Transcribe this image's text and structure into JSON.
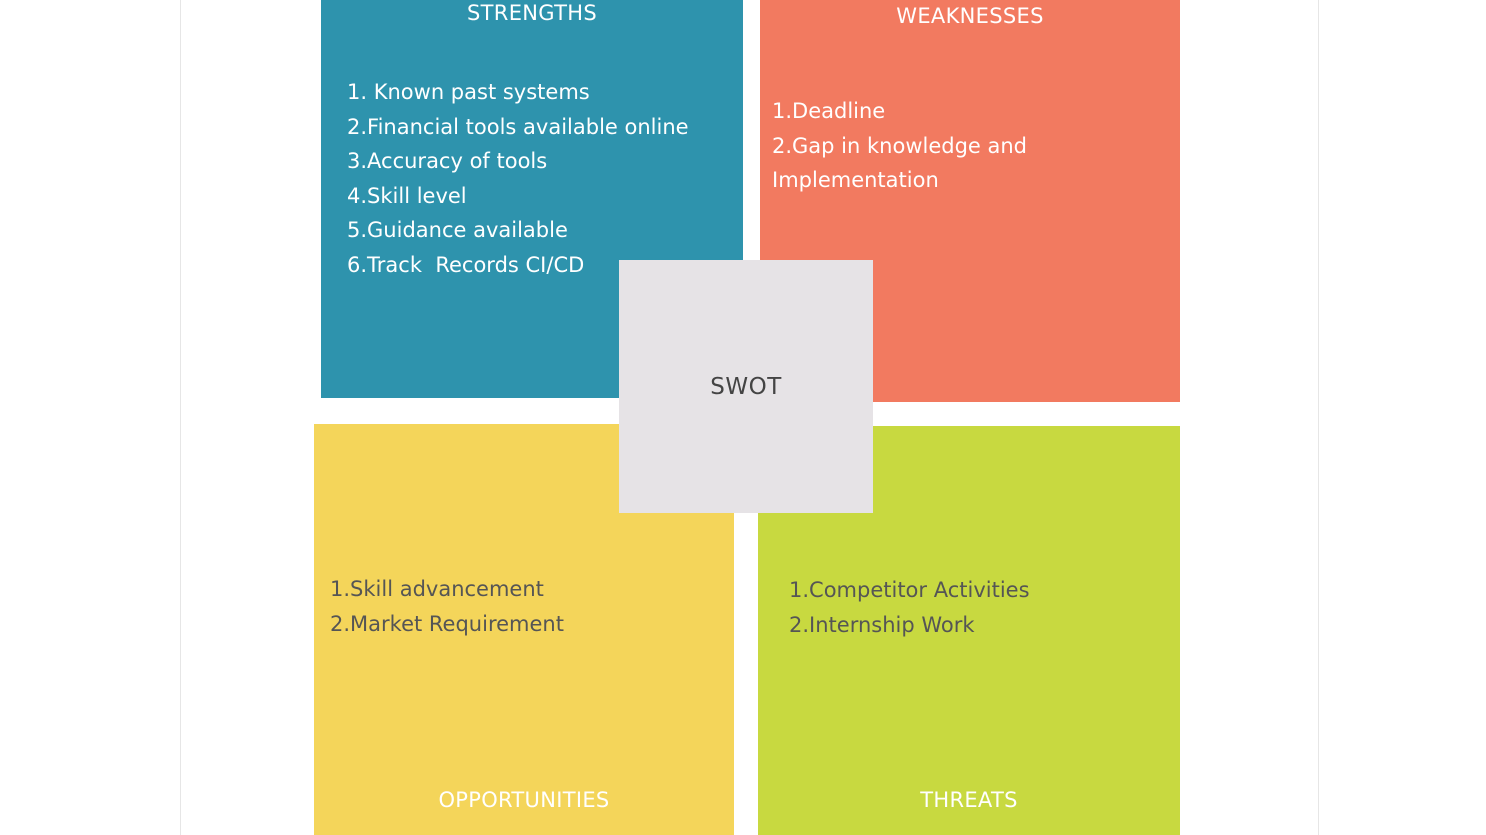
{
  "center_label": "SWOT",
  "colors": {
    "strengths": "#2e93ad",
    "weaknesses": "#f27a60",
    "opportunities": "#f4d55a",
    "threats": "#c8d940",
    "center": "#e6e3e6"
  },
  "strengths": {
    "title": "STRENGTHS",
    "items": [
      "1. Known past systems",
      "2.Financial tools available online",
      "3.Accuracy of tools",
      "4.Skill level",
      "5.Guidance available",
      "6.Track  Records CI/CD"
    ]
  },
  "weaknesses": {
    "title": "WEAKNESSES",
    "items": [
      "1.Deadline",
      "2.Gap in knowledge and Implementation"
    ]
  },
  "opportunities": {
    "title": "OPPORTUNITIES",
    "items": [
      "1.Skill advancement",
      "2.Market Requirement"
    ]
  },
  "threats": {
    "title": "THREATS",
    "items": [
      "1.Competitor Activities",
      "2.Internship Work"
    ]
  }
}
